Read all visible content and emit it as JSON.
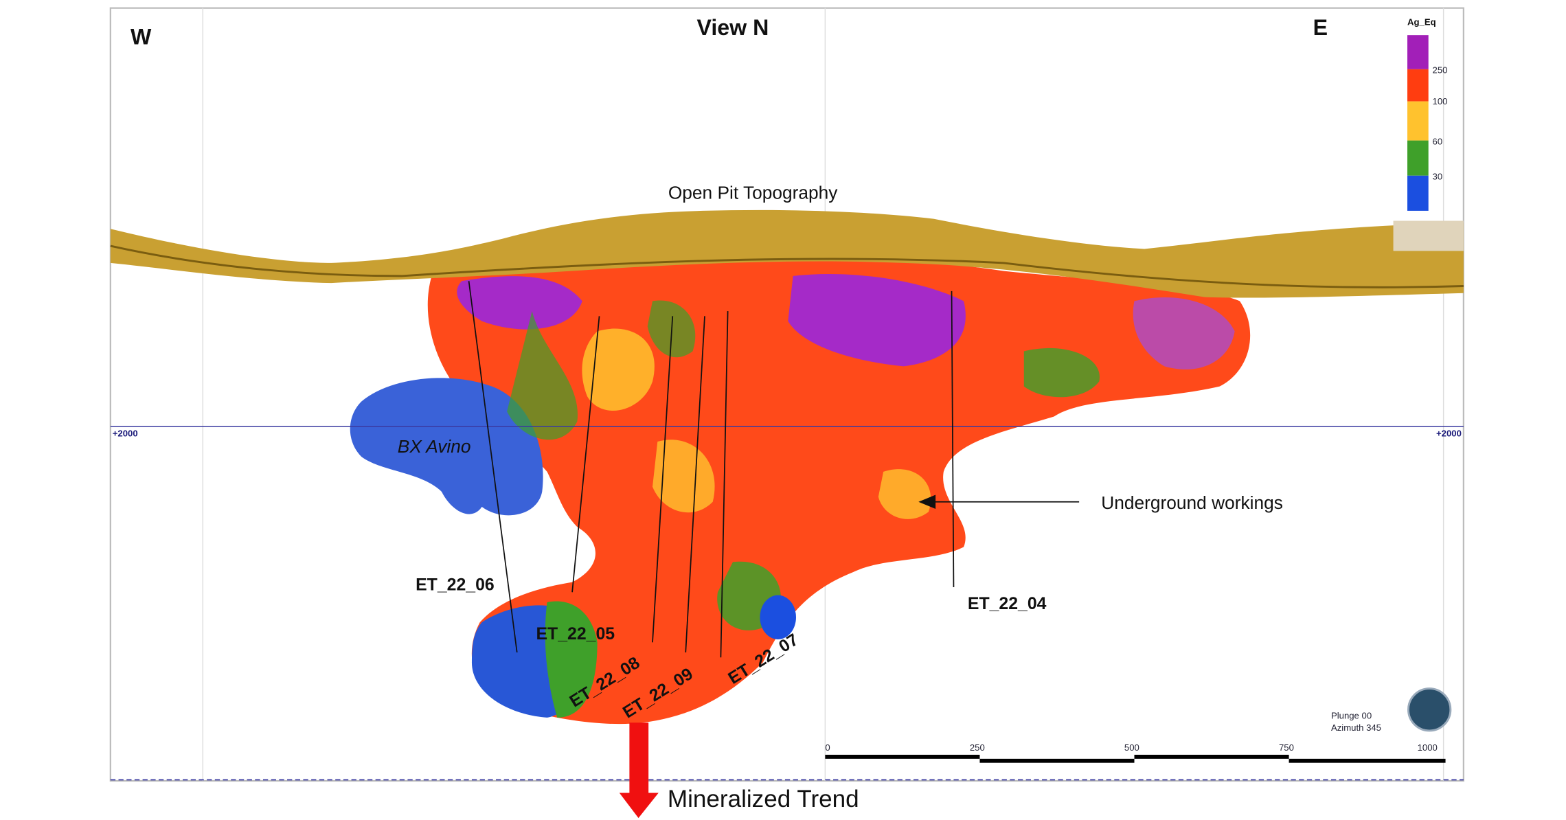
{
  "header": {
    "west": "W",
    "title": "View N",
    "east": "E"
  },
  "legend": {
    "title": "Ag_Eq",
    "labels": [
      "250",
      "100",
      "60",
      "30"
    ]
  },
  "annotations": {
    "topography": "Open Pit Topography",
    "breccia": "BX Avino",
    "workings": "Underground workings",
    "trend": "Mineralized Trend"
  },
  "elevation_labels": [
    "+2000",
    "+2000"
  ],
  "drill_holes": [
    "ET_22_06",
    "ET_22_05",
    "ET_22_08",
    "ET_22_09",
    "ET_22_07",
    "ET_22_04"
  ],
  "scale_bar": [
    "0",
    "250",
    "500",
    "750",
    "1000"
  ],
  "view_info": [
    "Plunge 00",
    "Azimuth 345"
  ]
}
